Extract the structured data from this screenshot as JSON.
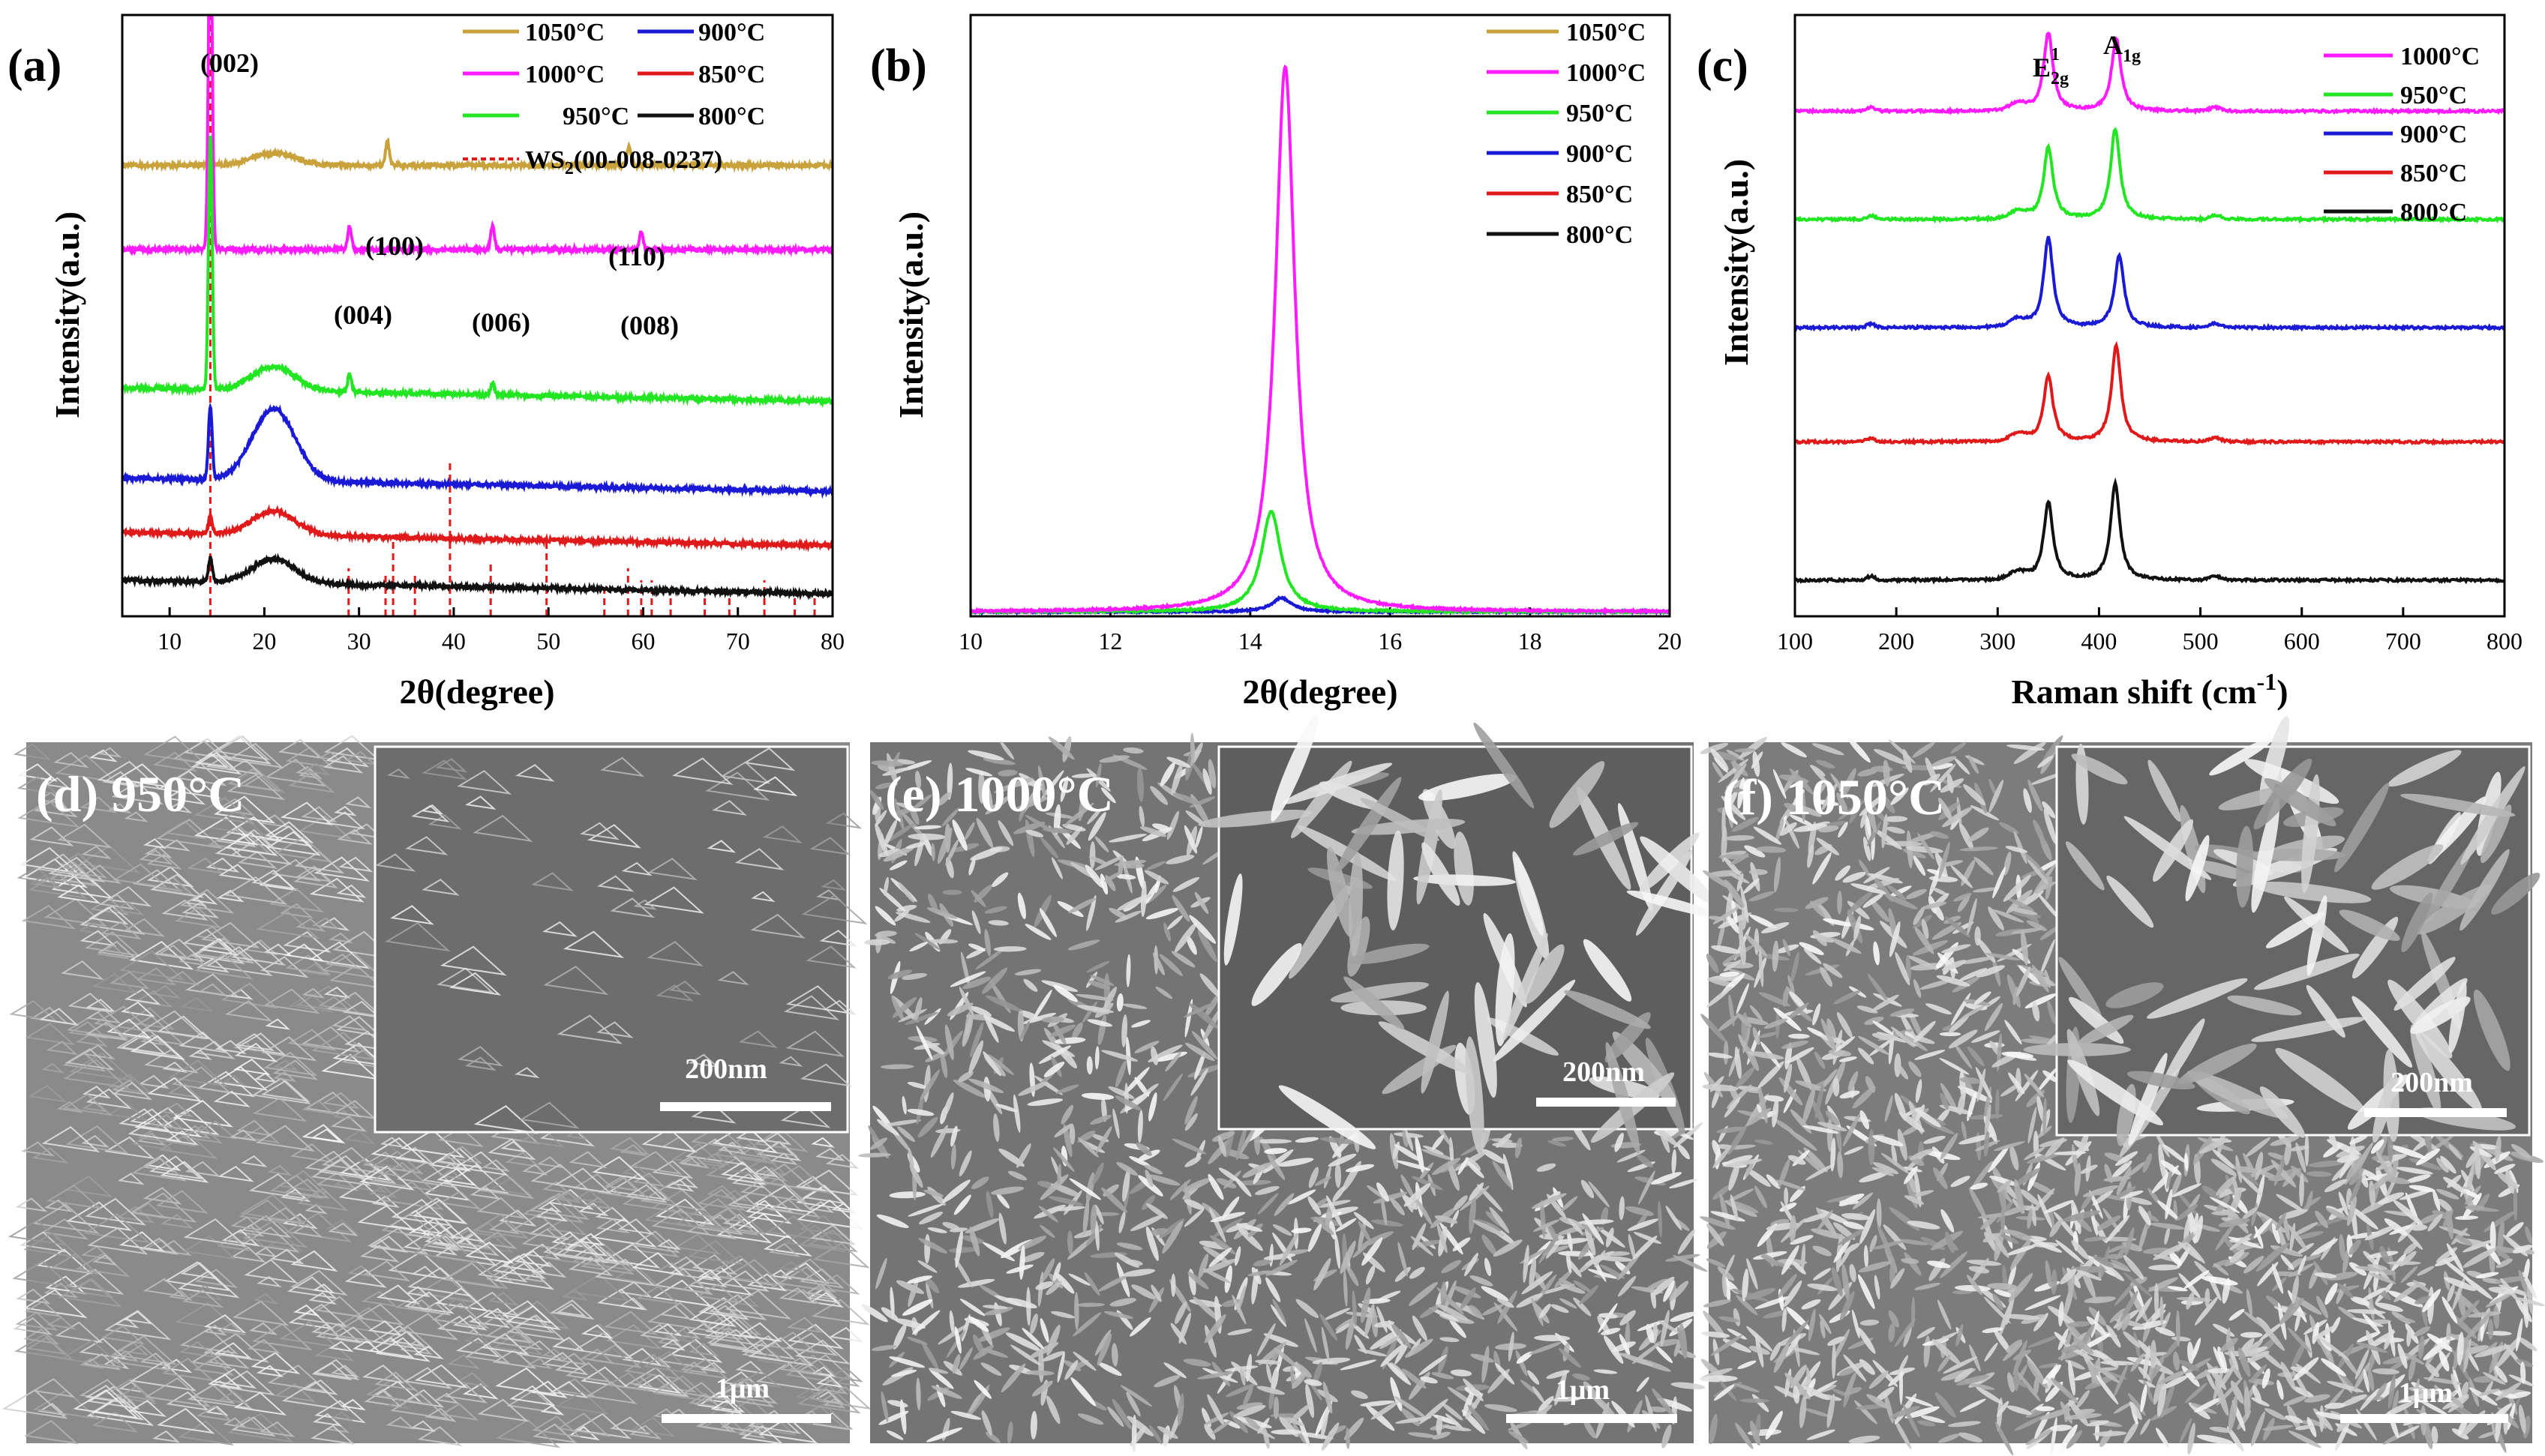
{
  "colors": {
    "t1050": "#c9a23b",
    "t1000": "#ff1aff",
    "t950": "#22e622",
    "t900": "#1a1ad6",
    "t850": "#e01a1a",
    "t800": "#111111",
    "ref": "#e01a1a"
  },
  "chart_data": [
    {
      "type": "line",
      "panel": "(a)",
      "title": "",
      "xlabel": "2θ(degree)",
      "ylabel": "Intensity(a.u.)",
      "xlim": [
        5,
        80
      ],
      "xticks": [
        "10",
        "20",
        "30",
        "40",
        "50",
        "60",
        "70",
        "80"
      ],
      "legend": [
        {
          "name": "1050°C",
          "color": "#c9a23b"
        },
        {
          "name": "900°C",
          "color": "#1a1ad6"
        },
        {
          "name": "1000°C",
          "color": "#ff1aff"
        },
        {
          "name": "850°C",
          "color": "#e01a1a"
        },
        {
          "name": "950°C",
          "color": "#22e622"
        },
        {
          "name": "800°C",
          "color": "#111111"
        },
        {
          "name": "WS",
          "sub": "2",
          "tail": "(00-008-0237)",
          "color": "#e01a1a",
          "dashed": true
        }
      ],
      "annotations": [
        "(002)",
        "(100)",
        "(110)",
        "(004)",
        "(006)",
        "(008)"
      ],
      "series": [
        {
          "name": "1050°C",
          "color": "#c9a23b",
          "baseline": 0.75,
          "peaks": [
            [
              14.3,
              0.02
            ],
            [
              21,
              0.02
            ],
            [
              33.0,
              0.04
            ],
            [
              58.5,
              0.03
            ]
          ]
        },
        {
          "name": "1000°C",
          "color": "#ff1aff",
          "baseline": 0.61,
          "peaks": [
            [
              14.3,
              0.58
            ],
            [
              29.0,
              0.04
            ],
            [
              44.1,
              0.04
            ],
            [
              59.8,
              0.03
            ]
          ]
        },
        {
          "name": "950°C",
          "color": "#22e622",
          "baseline": 0.38,
          "peaks": [
            [
              14.3,
              0.42
            ],
            [
              21,
              0.04
            ],
            [
              29.0,
              0.03
            ],
            [
              44.1,
              0.02
            ]
          ]
        },
        {
          "name": "900°C",
          "color": "#1a1ad6",
          "baseline": 0.23,
          "peaks": [
            [
              14.3,
              0.12
            ],
            [
              21,
              0.12
            ]
          ]
        },
        {
          "name": "850°C",
          "color": "#e01a1a",
          "baseline": 0.14,
          "peaks": [
            [
              14.3,
              0.03
            ],
            [
              21,
              0.04
            ]
          ]
        },
        {
          "name": "800°C",
          "color": "#111111",
          "baseline": 0.06,
          "peaks": [
            [
              14.3,
              0.04
            ],
            [
              21,
              0.04
            ]
          ]
        }
      ],
      "reference_lines": [
        {
          "x": 14.3,
          "h": 1.0
        },
        {
          "x": 28.9,
          "h": 0.08
        },
        {
          "x": 32.8,
          "h": 0.07
        },
        {
          "x": 33.6,
          "h": 0.13
        },
        {
          "x": 35.9,
          "h": 0.07
        },
        {
          "x": 39.6,
          "h": 0.26
        },
        {
          "x": 43.9,
          "h": 0.09
        },
        {
          "x": 49.8,
          "h": 0.13
        },
        {
          "x": 55.9,
          "h": 0.05
        },
        {
          "x": 58.4,
          "h": 0.08
        },
        {
          "x": 59.8,
          "h": 0.06
        },
        {
          "x": 60.9,
          "h": 0.06
        },
        {
          "x": 62.9,
          "h": 0.04
        },
        {
          "x": 66.5,
          "h": 0.04
        },
        {
          "x": 69.1,
          "h": 0.04
        },
        {
          "x": 72.8,
          "h": 0.06
        },
        {
          "x": 76.0,
          "h": 0.04
        },
        {
          "x": 78.1,
          "h": 0.04
        }
      ]
    },
    {
      "type": "line",
      "panel": "(b)",
      "title": "",
      "xlabel": "2θ(degree)",
      "ylabel": "Intensity(a.u.)",
      "xlim": [
        10,
        20
      ],
      "xticks": [
        "10",
        "12",
        "14",
        "16",
        "18",
        "20"
      ],
      "legend": [
        {
          "name": "1050°C",
          "color": "#c9a23b"
        },
        {
          "name": "1000°C",
          "color": "#ff1aff"
        },
        {
          "name": "950°C",
          "color": "#22e622"
        },
        {
          "name": "900°C",
          "color": "#1a1ad6"
        },
        {
          "name": "850°C",
          "color": "#e01a1a"
        },
        {
          "name": "800°C",
          "color": "#111111"
        }
      ],
      "series": [
        {
          "name": "1000°C",
          "color": "#ff1aff",
          "center": 14.5,
          "height": 0.98
        },
        {
          "name": "950°C",
          "color": "#22e622",
          "center": 14.3,
          "height": 0.18
        },
        {
          "name": "900°C",
          "color": "#1a1ad6",
          "center": 14.45,
          "height": 0.025
        }
      ]
    },
    {
      "type": "line",
      "panel": "(c)",
      "title": "",
      "xlabel": "Raman shift (cm",
      "xlabel_sup": "-1",
      "xlabel_end": ")",
      "ylabel": "Intensity(a.u.)",
      "xlim": [
        100,
        800
      ],
      "xticks": [
        "100",
        "200",
        "300",
        "400",
        "500",
        "600",
        "700",
        "800"
      ],
      "annotations": {
        "e2g_main": "E",
        "e2g_sub": "2g",
        "e2g_sup": "1",
        "a1g_main": "A",
        "a1g_sub": "1g"
      },
      "legend": [
        {
          "name": "1000°C",
          "color": "#ff1aff"
        },
        {
          "name": "950°C",
          "color": "#22e622"
        },
        {
          "name": "900°C",
          "color": "#1a1ad6"
        },
        {
          "name": "850°C",
          "color": "#e01a1a"
        },
        {
          "name": "800°C",
          "color": "#111111"
        }
      ],
      "series": [
        {
          "name": "1000°C",
          "color": "#ff1aff",
          "baseline": 0.84,
          "peaks": [
            [
              350,
              0.13
            ],
            [
              417,
              0.12
            ]
          ]
        },
        {
          "name": "950°C",
          "color": "#22e622",
          "baseline": 0.66,
          "peaks": [
            [
              350,
              0.12
            ],
            [
              416,
              0.15
            ]
          ]
        },
        {
          "name": "900°C",
          "color": "#1a1ad6",
          "baseline": 0.48,
          "peaks": [
            [
              350,
              0.15
            ],
            [
              420,
              0.12
            ]
          ]
        },
        {
          "name": "850°C",
          "color": "#e01a1a",
          "baseline": 0.29,
          "peaks": [
            [
              350,
              0.11
            ],
            [
              417,
              0.16
            ]
          ]
        },
        {
          "name": "800°C",
          "color": "#111111",
          "baseline": 0.06,
          "peaks": [
            [
              350,
              0.13
            ],
            [
              416,
              0.16
            ]
          ]
        }
      ]
    }
  ],
  "sem_panels": [
    {
      "label": "(d) 950°C",
      "inset_scale": "200nm",
      "main_scale": "1μm",
      "morphology": "sheets"
    },
    {
      "label": "(e) 1000°C",
      "inset_scale": "200nm",
      "main_scale": "1μm",
      "morphology": "needles"
    },
    {
      "label": "(f) 1050°C",
      "inset_scale": "200nm",
      "main_scale": "1μm",
      "morphology": "dense-needles"
    }
  ]
}
